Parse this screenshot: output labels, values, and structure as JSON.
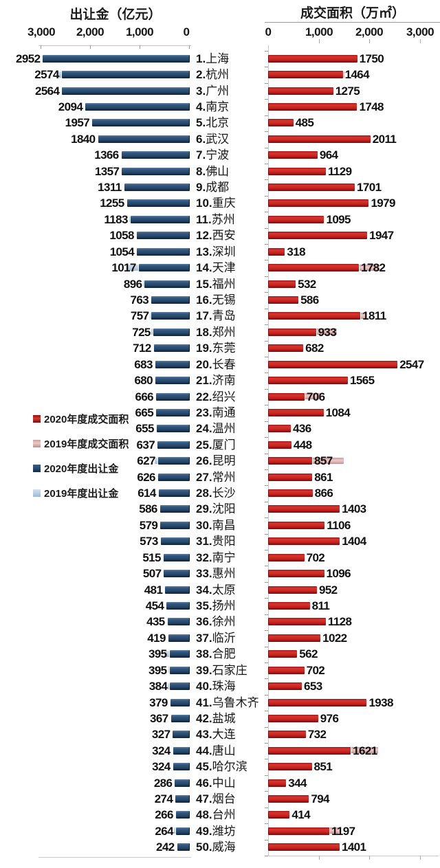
{
  "header": {
    "left_title": "出让金（亿元）",
    "right_title": "成交面积（万㎡）",
    "left_axis_labels": [
      "3,000",
      "2,000",
      "1,000",
      "0"
    ],
    "right_axis_labels": [
      "0",
      "1,000",
      "2,000",
      "3,000"
    ]
  },
  "legend": [
    {
      "label": "2020年度成交面积",
      "color": "#C41E1E"
    },
    {
      "label": "2019年度成交面积",
      "color": "#E2B6B4"
    },
    {
      "label": "2020年度出让金",
      "color": "#27476B"
    },
    {
      "label": "2019年度出让金",
      "color": "#BCCFE5"
    }
  ],
  "chart_data": {
    "type": "bar",
    "layout": "horizontal back-to-back tornado; left panel axis reversed (0 at center); 2019 series drawn behind 2020 series, visible only where longer",
    "left_panel": {
      "title": "出让金（亿元）",
      "xlim": [
        0,
        3000
      ],
      "ticks": [
        3000,
        2000,
        1000,
        0
      ],
      "series": [
        "2020年度出让金",
        "2019年度出让金"
      ]
    },
    "right_panel": {
      "title": "成交面积（万㎡）",
      "xlim": [
        0,
        3000
      ],
      "ticks": [
        0,
        1000,
        2000,
        3000
      ],
      "series": [
        "2020年度成交面积",
        "2019年度成交面积"
      ]
    },
    "value_note": "fee_2019 / area_2019 are unlabeled in the image; values below are pixel-estimated lengths of the visible 2019 back-bars (null = hidden behind 2020 bar)",
    "rows": [
      {
        "rank": 1,
        "city": "上海",
        "fee_2020": 2952,
        "area_2020": 1750,
        "fee_2019": null,
        "area_2019": null
      },
      {
        "rank": 2,
        "city": "杭州",
        "fee_2020": 2574,
        "area_2020": 1464,
        "fee_2019": 2650,
        "area_2019": 1510
      },
      {
        "rank": 3,
        "city": "广州",
        "fee_2020": 2564,
        "area_2020": 1275,
        "fee_2019": null,
        "area_2019": null
      },
      {
        "rank": 4,
        "city": "南京",
        "fee_2020": 2094,
        "area_2020": 1748,
        "fee_2019": null,
        "area_2019": null
      },
      {
        "rank": 5,
        "city": "北京",
        "fee_2020": 1957,
        "area_2020": 485,
        "fee_2019": null,
        "area_2019": null
      },
      {
        "rank": 6,
        "city": "武汉",
        "fee_2020": 1840,
        "area_2020": 2011,
        "fee_2019": null,
        "area_2019": null
      },
      {
        "rank": 7,
        "city": "宁波",
        "fee_2020": 1366,
        "area_2020": 964,
        "fee_2019": null,
        "area_2019": null
      },
      {
        "rank": 8,
        "city": "佛山",
        "fee_2020": 1357,
        "area_2020": 1129,
        "fee_2019": null,
        "area_2019": null
      },
      {
        "rank": 9,
        "city": "成都",
        "fee_2020": 1311,
        "area_2020": 1701,
        "fee_2019": null,
        "area_2019": null
      },
      {
        "rank": 10,
        "city": "重庆",
        "fee_2020": 1255,
        "area_2020": 1979,
        "fee_2019": null,
        "area_2019": null
      },
      {
        "rank": 11,
        "city": "苏州",
        "fee_2020": 1183,
        "area_2020": 1095,
        "fee_2019": 1215,
        "area_2019": null
      },
      {
        "rank": 12,
        "city": "西安",
        "fee_2020": 1058,
        "area_2020": 1947,
        "fee_2019": null,
        "area_2019": null
      },
      {
        "rank": 13,
        "city": "深圳",
        "fee_2020": 1054,
        "area_2020": 318,
        "fee_2019": null,
        "area_2019": null
      },
      {
        "rank": 14,
        "city": "天津",
        "fee_2020": 1017,
        "area_2020": 1782,
        "fee_2019": 1250,
        "area_2019": 2200
      },
      {
        "rank": 15,
        "city": "福州",
        "fee_2020": 896,
        "area_2020": 532,
        "fee_2019": 930,
        "area_2019": 560
      },
      {
        "rank": 16,
        "city": "无锡",
        "fee_2020": 763,
        "area_2020": 586,
        "fee_2019": null,
        "area_2019": null
      },
      {
        "rank": 17,
        "city": "青岛",
        "fee_2020": 757,
        "area_2020": 1811,
        "fee_2019": 790,
        "area_2019": 1930
      },
      {
        "rank": 18,
        "city": "郑州",
        "fee_2020": 725,
        "area_2020": 933,
        "fee_2019": 760,
        "area_2019": 1360
      },
      {
        "rank": 19,
        "city": "东莞",
        "fee_2020": 712,
        "area_2020": 682,
        "fee_2019": null,
        "area_2019": 710
      },
      {
        "rank": 20,
        "city": "长春",
        "fee_2020": 683,
        "area_2020": 2547,
        "fee_2019": null,
        "area_2019": null
      },
      {
        "rank": 21,
        "city": "济南",
        "fee_2020": 680,
        "area_2020": 1565,
        "fee_2019": null,
        "area_2019": null
      },
      {
        "rank": 22,
        "city": "绍兴",
        "fee_2020": 666,
        "area_2020": 706,
        "fee_2019": null,
        "area_2019": 1030
      },
      {
        "rank": 23,
        "city": "南通",
        "fee_2020": 665,
        "area_2020": 1084,
        "fee_2019": null,
        "area_2019": null
      },
      {
        "rank": 24,
        "city": "温州",
        "fee_2020": 655,
        "area_2020": 436,
        "fee_2019": null,
        "area_2019": null
      },
      {
        "rank": 25,
        "city": "厦门",
        "fee_2020": 637,
        "area_2020": 448,
        "fee_2019": null,
        "area_2019": null
      },
      {
        "rank": 26,
        "city": "昆明",
        "fee_2020": 627,
        "area_2020": 857,
        "fee_2019": 700,
        "area_2019": 1490
      },
      {
        "rank": 27,
        "city": "常州",
        "fee_2020": 626,
        "area_2020": 861,
        "fee_2019": null,
        "area_2019": null
      },
      {
        "rank": 28,
        "city": "长沙",
        "fee_2020": 614,
        "area_2020": 866,
        "fee_2019": null,
        "area_2019": null
      },
      {
        "rank": 29,
        "city": "沈阳",
        "fee_2020": 586,
        "area_2020": 1403,
        "fee_2019": null,
        "area_2019": null
      },
      {
        "rank": 30,
        "city": "南昌",
        "fee_2020": 579,
        "area_2020": 1106,
        "fee_2019": null,
        "area_2019": null
      },
      {
        "rank": 31,
        "city": "贵阳",
        "fee_2020": 573,
        "area_2020": 1404,
        "fee_2019": null,
        "area_2019": null
      },
      {
        "rank": 32,
        "city": "南宁",
        "fee_2020": 515,
        "area_2020": 702,
        "fee_2019": null,
        "area_2019": null
      },
      {
        "rank": 33,
        "city": "惠州",
        "fee_2020": 507,
        "area_2020": 1096,
        "fee_2019": null,
        "area_2019": null
      },
      {
        "rank": 34,
        "city": "太原",
        "fee_2020": 481,
        "area_2020": 952,
        "fee_2019": null,
        "area_2019": null
      },
      {
        "rank": 35,
        "city": "扬州",
        "fee_2020": 454,
        "area_2020": 811,
        "fee_2019": null,
        "area_2019": null
      },
      {
        "rank": 36,
        "city": "徐州",
        "fee_2020": 435,
        "area_2020": 1128,
        "fee_2019": null,
        "area_2019": null
      },
      {
        "rank": 37,
        "city": "临沂",
        "fee_2020": 419,
        "area_2020": 1022,
        "fee_2019": null,
        "area_2019": null
      },
      {
        "rank": 38,
        "city": "合肥",
        "fee_2020": 395,
        "area_2020": 562,
        "fee_2019": 500,
        "area_2019": 590
      },
      {
        "rank": 39,
        "city": "石家庄",
        "fee_2020": 395,
        "area_2020": 702,
        "fee_2019": 420,
        "area_2019": null
      },
      {
        "rank": 40,
        "city": "珠海",
        "fee_2020": 384,
        "area_2020": 653,
        "fee_2019": 430,
        "area_2019": null
      },
      {
        "rank": 41,
        "city": "乌鲁木齐",
        "fee_2020": 379,
        "area_2020": 1938,
        "fee_2019": null,
        "area_2019": null
      },
      {
        "rank": 42,
        "city": "盐城",
        "fee_2020": 367,
        "area_2020": 976,
        "fee_2019": null,
        "area_2019": null
      },
      {
        "rank": 43,
        "city": "大连",
        "fee_2020": 327,
        "area_2020": 732,
        "fee_2019": null,
        "area_2019": null
      },
      {
        "rank": 44,
        "city": "唐山",
        "fee_2020": 324,
        "area_2020": 1621,
        "fee_2019": null,
        "area_2019": 2180
      },
      {
        "rank": 45,
        "city": "哈尔滨",
        "fee_2020": 324,
        "area_2020": 851,
        "fee_2019": null,
        "area_2019": null
      },
      {
        "rank": 46,
        "city": "中山",
        "fee_2020": 286,
        "area_2020": 344,
        "fee_2019": null,
        "area_2019": null
      },
      {
        "rank": 47,
        "city": "烟台",
        "fee_2020": 274,
        "area_2020": 794,
        "fee_2019": null,
        "area_2019": null
      },
      {
        "rank": 48,
        "city": "台州",
        "fee_2020": 266,
        "area_2020": 414,
        "fee_2019": null,
        "area_2019": null
      },
      {
        "rank": 49,
        "city": "潍坊",
        "fee_2020": 264,
        "area_2020": 1197,
        "fee_2019": 300,
        "area_2019": 1400
      },
      {
        "rank": 50,
        "city": "威海",
        "fee_2020": 242,
        "area_2020": 1401,
        "fee_2019": null,
        "area_2019": null
      }
    ]
  }
}
